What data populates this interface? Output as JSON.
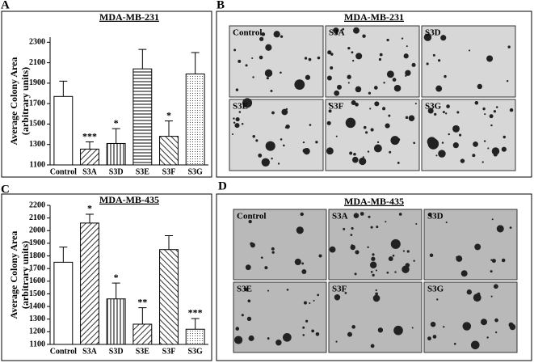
{
  "panel_labels": [
    "A",
    "B",
    "C",
    "D"
  ],
  "image_panels": [
    {
      "title": "MDA-MB-231",
      "labels": [
        "Control",
        "S3A",
        "S3D",
        "S3E",
        "S3F",
        "S3G"
      ]
    },
    {
      "title": "MDA-MB-435",
      "labels": [
        "Control",
        "S3A",
        "S3D",
        "S3E",
        "S3F",
        "S3G"
      ]
    }
  ],
  "chart_data": [
    {
      "type": "bar",
      "title": "MDA-MB-231",
      "y_label": [
        "Average Colony Area",
        "(arbitrary units)"
      ],
      "categories": [
        "Control",
        "S3A",
        "S3D",
        "S3E",
        "S3F",
        "S3G"
      ],
      "values": [
        1770,
        1255,
        1310,
        2040,
        1380,
        1990
      ],
      "errors": [
        150,
        70,
        145,
        190,
        150,
        210
      ],
      "annotations": [
        null,
        "***",
        "*",
        null,
        "*",
        null
      ],
      "patterns": [
        "none",
        "diagonal",
        "vertical",
        "horizontal",
        "backdiagonal",
        "dots"
      ],
      "ylim": [
        1100,
        2350
      ],
      "yticks": [
        1100,
        1300,
        1500,
        1700,
        1900,
        2100,
        2300
      ],
      "color": "#ffffff"
    },
    {
      "type": "bar",
      "title": "MDA-MB-435",
      "y_label": [
        "Average Colony Area",
        "(arbitrary units)"
      ],
      "categories": [
        "Control",
        "S3A",
        "S3D",
        "S3E",
        "S3F",
        "S3G"
      ],
      "values": [
        1750,
        2060,
        1460,
        1260,
        1850,
        1220
      ],
      "errors": [
        120,
        70,
        125,
        130,
        110,
        85
      ],
      "annotations": [
        null,
        "*",
        "*",
        "**",
        null,
        "***"
      ],
      "patterns": [
        "none",
        "diagonal",
        "vertical",
        "diagonal",
        "backdiagonal",
        "dots"
      ],
      "ylim": [
        1100,
        2200
      ],
      "yticks": [
        1100,
        1200,
        1300,
        1400,
        1500,
        1600,
        1700,
        1800,
        1900,
        2000,
        2100,
        2200
      ],
      "color": "#ffffff"
    }
  ]
}
